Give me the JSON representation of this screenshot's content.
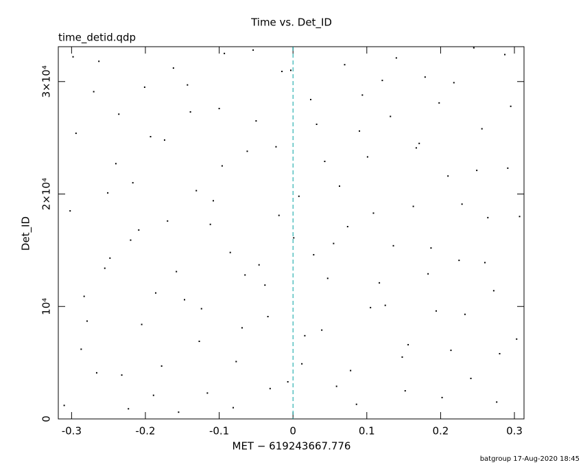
{
  "chart_data": {
    "type": "scatter",
    "title": "Time vs. Det_ID",
    "annotation": "time_detid.qdp",
    "xlabel": "MET − 619243667.776",
    "ylabel": "Det_ID",
    "footer": "batgroup 17-Aug-2020 18:45",
    "color": "#000000",
    "reference_line_x": 0,
    "reference_line_color": "#00a0a0",
    "xlim": [
      -0.318,
      0.313
    ],
    "ylim": [
      0,
      33100
    ],
    "xticks": [
      -0.3,
      -0.2,
      -0.1,
      0,
      0.1,
      0.2,
      0.3
    ],
    "yticks": [
      0,
      {
        "value": 10000,
        "label": "10⁴"
      },
      {
        "value": 20000,
        "label": "2×10⁴"
      },
      {
        "value": 30000,
        "label": "3×10⁴"
      }
    ],
    "x": [
      -0.31,
      -0.294,
      -0.279,
      -0.263,
      -0.248,
      -0.232,
      -0.217,
      -0.201,
      -0.186,
      -0.17,
      -0.155,
      -0.139,
      -0.124,
      -0.108,
      -0.093,
      -0.077,
      -0.062,
      -0.046,
      -0.031,
      -0.015,
      0.001,
      0.016,
      0.032,
      0.047,
      0.063,
      0.078,
      0.094,
      0.109,
      0.125,
      0.14,
      0.156,
      0.171,
      0.187,
      0.202,
      0.218,
      0.233,
      0.249,
      0.264,
      0.28,
      0.295,
      -0.302,
      -0.287,
      -0.27,
      -0.255,
      -0.24,
      -0.223,
      -0.209,
      -0.193,
      -0.178,
      -0.162,
      -0.147,
      -0.131,
      -0.116,
      -0.1,
      -0.085,
      -0.069,
      -0.054,
      -0.038,
      -0.023,
      -0.007,
      0.008,
      0.024,
      0.039,
      0.055,
      0.07,
      0.086,
      0.101,
      0.117,
      0.132,
      0.148,
      0.163,
      0.179,
      0.194,
      0.21,
      0.225,
      0.241,
      0.256,
      0.272,
      0.287,
      0.303,
      -0.298,
      -0.283,
      -0.266,
      -0.251,
      -0.236,
      -0.22,
      -0.205,
      -0.189,
      -0.174,
      -0.158,
      -0.143,
      -0.127,
      -0.112,
      -0.096,
      -0.081,
      -0.065,
      -0.05,
      -0.034,
      -0.019,
      -0.003,
      0.012,
      0.028,
      0.043,
      0.059,
      0.074,
      0.09,
      0.105,
      0.121,
      0.136,
      0.152,
      0.167,
      0.183,
      0.198,
      0.214,
      0.229,
      0.245,
      0.26,
      0.276,
      0.291,
      0.307
    ],
    "values": [
      1200,
      25400,
      8700,
      31800,
      14300,
      3900,
      21000,
      29500,
      11200,
      17600,
      600,
      27300,
      9800,
      19400,
      32500,
      5100,
      23800,
      13700,
      2700,
      30900,
      16100,
      7400,
      26200,
      12500,
      20700,
      4300,
      28800,
      18300,
      10100,
      32100,
      6600,
      24500,
      15200,
      1900,
      29900,
      9300,
      22100,
      17900,
      5800,
      27800,
      18500,
      6200,
      29100,
      13400,
      22700,
      900,
      16800,
      25100,
      4700,
      31200,
      10600,
      20300,
      2300,
      27600,
      14800,
      8100,
      32800,
      11900,
      24200,
      3300,
      19800,
      28400,
      7900,
      15600,
      31500,
      1300,
      23300,
      12100,
      26900,
      5500,
      18900,
      30400,
      9600,
      21600,
      14100,
      3600,
      25800,
      11400,
      32400,
      7100,
      32200,
      10900,
      4100,
      20100,
      27100,
      15900,
      8400,
      2100,
      24800,
      13100,
      29700,
      6900,
      17300,
      22500,
      1000,
      12800,
      26500,
      9100,
      18100,
      31000,
      4900,
      14600,
      22900,
      2900,
      17100,
      25600,
      9900,
      30100,
      15400,
      2500,
      24100,
      12900,
      28100,
      6100,
      19100,
      33000,
      13900,
      1500,
      22300,
      18000
    ]
  }
}
